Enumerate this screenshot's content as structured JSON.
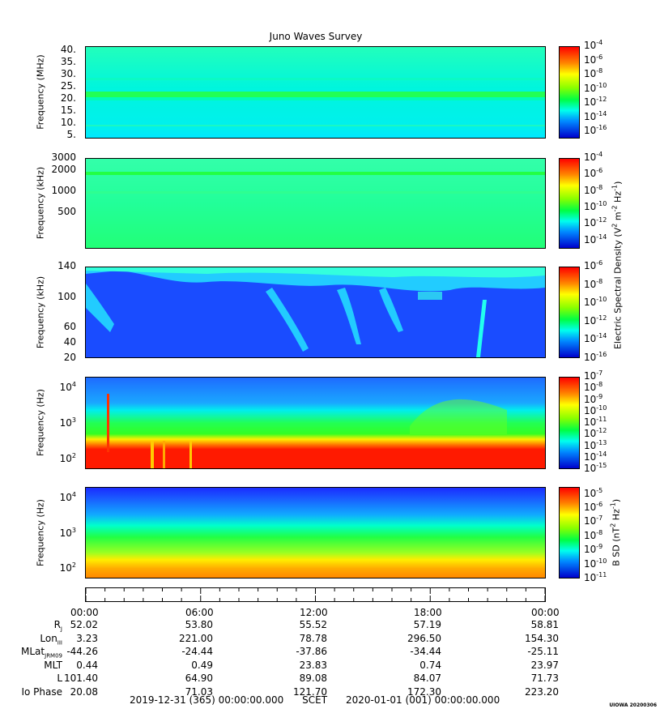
{
  "title": "Juno Waves Survey",
  "stamp": "UIOWA 20200306",
  "footer": {
    "start": "2019-12-31 (365) 00:00:00.000",
    "mid": "SCET",
    "end": "2020-01-01 (001) 00:00:00.000"
  },
  "time_labels": [
    "00:00",
    "06:00",
    "12:00",
    "18:00",
    "00:00"
  ],
  "ephemeris": [
    {
      "label": "R",
      "sub": "J",
      "values": [
        "52.02",
        "53.80",
        "55.52",
        "57.19",
        "58.81"
      ]
    },
    {
      "label": "Lon",
      "sub": "III",
      "values": [
        "3.23",
        "221.00",
        "78.78",
        "296.50",
        "154.30"
      ]
    },
    {
      "label": "MLat",
      "sub": "JRM09",
      "values": [
        "-44.26",
        "-24.44",
        "-37.86",
        "-34.44",
        "-25.11"
      ]
    },
    {
      "label": "MLT",
      "sub": "",
      "values": [
        "0.44",
        "0.49",
        "23.83",
        "0.74",
        "23.97"
      ]
    },
    {
      "label": "L",
      "sub": "",
      "values": [
        "101.40",
        "64.90",
        "89.08",
        "84.07",
        "71.73"
      ]
    },
    {
      "label": "Io Phase",
      "sub": "",
      "values": [
        "20.08",
        "71.03",
        "121.70",
        "172.30",
        "223.20"
      ]
    }
  ],
  "colors": {
    "cyan": "#00ffee",
    "green": "#22ff44",
    "blue": "#1a4cff",
    "red": "#ff1a00",
    "yellow": "#ffdd00"
  },
  "right_labels": {
    "electric": "Electric Spectral Density (V",
    "magnetic": "B SD (nT"
  },
  "chart_data": [
    {
      "type": "heatmap",
      "ylabel": "Frequency (MHz)",
      "y_ticks": [
        "40.",
        "35.",
        "30.",
        "25.",
        "20.",
        "15.",
        "10.",
        "5."
      ],
      "y_tick_values": [
        40,
        35,
        30,
        25,
        20,
        15,
        10,
        5
      ],
      "ylim": [
        3.5,
        41.5
      ],
      "colorbar_exponents": [
        "-4",
        "-6",
        "-8",
        "-10",
        "-12",
        "-14",
        "-16"
      ],
      "colorbar_range": [
        -17,
        -4
      ]
    },
    {
      "type": "heatmap",
      "ylabel": "Frequency (kHz)",
      "y_ticks": [
        "3000",
        "2000",
        "1000",
        "500"
      ],
      "y_tick_values": [
        3000,
        2000,
        1000,
        500
      ],
      "ylim": [
        150,
        3000
      ],
      "colorbar_exponents": [
        "-4",
        "-6",
        "-8",
        "-10",
        "-12",
        "-14"
      ],
      "colorbar_range": [
        -15,
        -4
      ]
    },
    {
      "type": "heatmap",
      "ylabel": "Frequency (kHz)",
      "y_ticks": [
        "140",
        "100",
        "60",
        "40",
        "20"
      ],
      "y_tick_values": [
        140,
        100,
        60,
        40,
        20
      ],
      "ylim": [
        20,
        140
      ],
      "colorbar_exponents": [
        "-6",
        "-8",
        "-10",
        "-12",
        "-14",
        "-16"
      ],
      "colorbar_range": [
        -16,
        -6
      ]
    },
    {
      "type": "heatmap",
      "ylabel": "Frequency (Hz)",
      "y_ticks": [
        "4",
        "3",
        "2"
      ],
      "y_tick_values": [
        10000,
        1000,
        100
      ],
      "ylim": [
        50,
        20000
      ],
      "colorbar_exponents": [
        "-7",
        "-8",
        "-9",
        "-10",
        "-11",
        "-12",
        "-13",
        "-14",
        "-15"
      ],
      "colorbar_range": [
        -15,
        -7
      ]
    },
    {
      "type": "heatmap",
      "ylabel": "Frequency (Hz)",
      "y_ticks": [
        "4",
        "3",
        "2"
      ],
      "y_tick_values": [
        10000,
        1000,
        100
      ],
      "ylim": [
        50,
        20000
      ],
      "colorbar_exponents": [
        "-5",
        "-6",
        "-7",
        "-8",
        "-9",
        "-10",
        "-11"
      ],
      "colorbar_range": [
        -11,
        -4.5
      ]
    }
  ]
}
